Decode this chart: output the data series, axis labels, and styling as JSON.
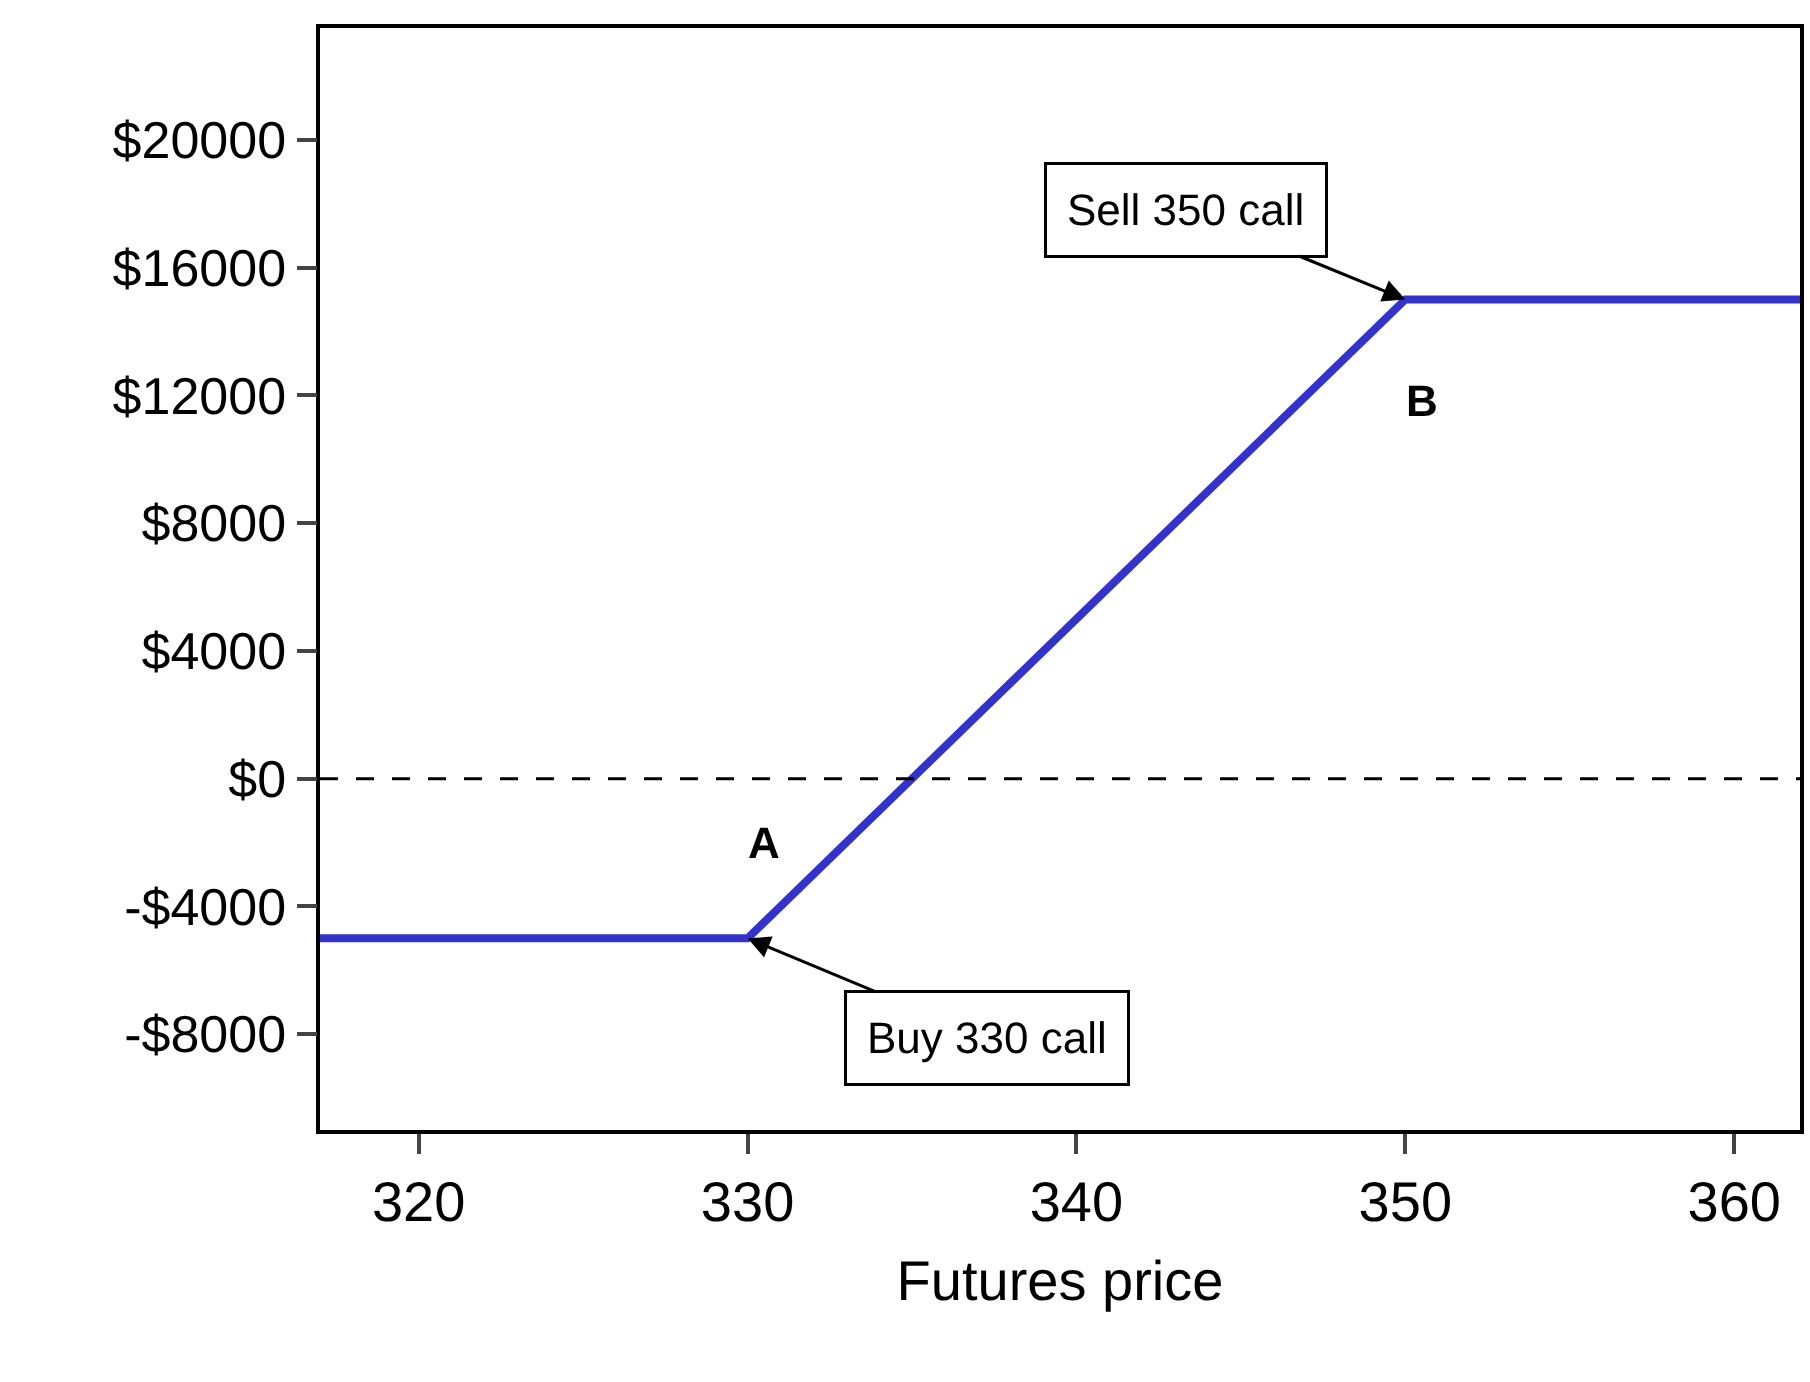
{
  "chart_data": {
    "type": "line",
    "xlabel": "Futures price",
    "x": [
      317,
      330,
      350,
      362
    ],
    "series": [
      {
        "color": "#3333cc",
        "values": [
          -5000,
          -5000,
          15000,
          15000
        ]
      }
    ],
    "xlim": [
      317,
      362
    ],
    "xticks": [
      320,
      330,
      340,
      350,
      360
    ],
    "ylim": [
      -11000,
      23500
    ],
    "yticks": [
      {
        "value": -8000,
        "label": "-$8000"
      },
      {
        "value": -4000,
        "label": "-$4000"
      },
      {
        "value": 0,
        "label": "$0"
      },
      {
        "value": 4000,
        "label": "$4000"
      },
      {
        "value": 8000,
        "label": "$8000"
      },
      {
        "value": 12000,
        "label": "$12000"
      },
      {
        "value": 16000,
        "label": "$16000"
      },
      {
        "value": 20000,
        "label": "$20000"
      }
    ],
    "ref_lines": [
      {
        "axis": "y",
        "value": 0,
        "color": "#000000",
        "line_style": "dashed"
      }
    ],
    "annotations": [
      {
        "text": "Sell 350 call",
        "x": 350,
        "y": 15000
      },
      {
        "text": "Buy 330 call",
        "x": 330,
        "y": -5000
      },
      "A",
      "B"
    ],
    "marker": "none",
    "line_style": "solid"
  }
}
